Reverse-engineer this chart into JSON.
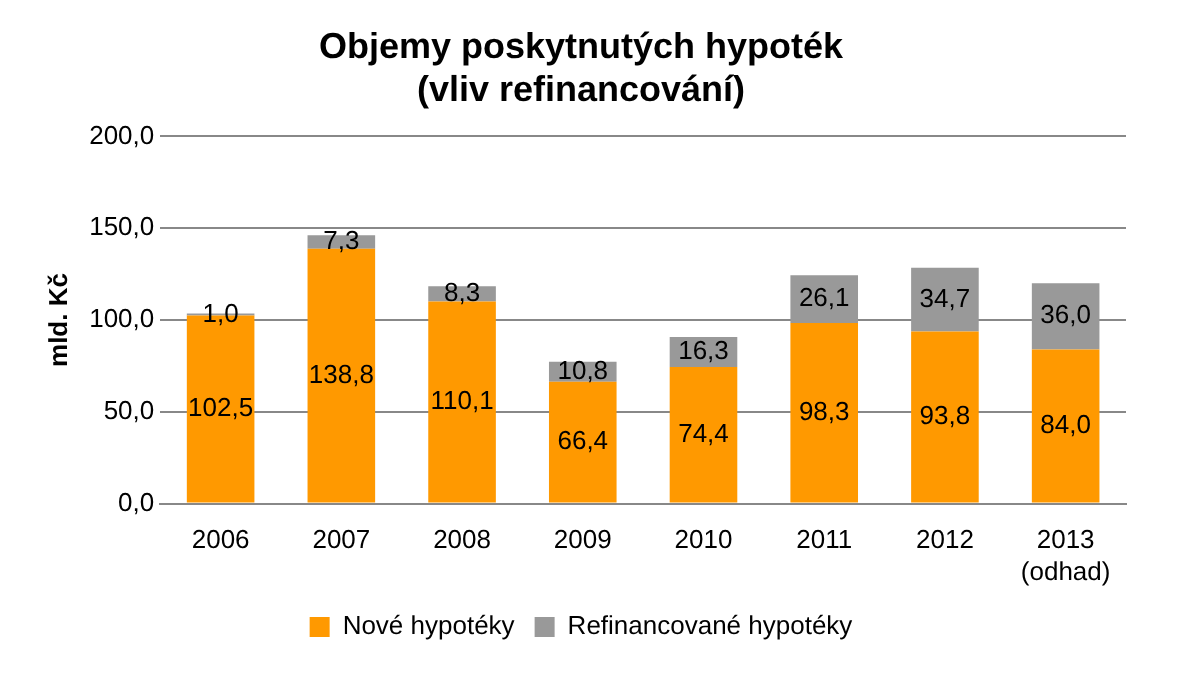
{
  "chart_data": {
    "type": "bar",
    "title": "Objemy poskytnutých hypoték\n(vliv refinancování)",
    "ylabel": "mld. Kč",
    "categories": [
      "2006",
      "2007",
      "2008",
      "2009",
      "2010",
      "2011",
      "2012",
      "2013\n(odhad)"
    ],
    "stacked": true,
    "series": [
      {
        "name": "Nové hypotéky",
        "color": "#ff9900",
        "values": [
          102.5,
          138.8,
          110.1,
          66.4,
          74.4,
          98.3,
          93.8,
          84.0
        ],
        "value_labels": [
          "102,5",
          "138,8",
          "110,1",
          "66,4",
          "74,4",
          "98,3",
          "93,8",
          "84,0"
        ]
      },
      {
        "name": "Refinancované hypotéky",
        "color": "#999999",
        "values": [
          1.0,
          7.3,
          8.3,
          10.8,
          16.3,
          26.1,
          34.7,
          36.0
        ],
        "value_labels": [
          "1,0",
          "7,3",
          "8,3",
          "10,8",
          "16,3",
          "26,1",
          "34,7",
          "36,0"
        ]
      }
    ],
    "ylim": [
      0,
      200
    ],
    "yticks": [
      {
        "value": 0,
        "label": "0,0"
      },
      {
        "value": 50,
        "label": "50,0"
      },
      {
        "value": 100,
        "label": "100,0"
      },
      {
        "value": 150,
        "label": "150,0"
      },
      {
        "value": 200,
        "label": "200,0"
      }
    ],
    "grid": "y",
    "legend": "bottom"
  }
}
